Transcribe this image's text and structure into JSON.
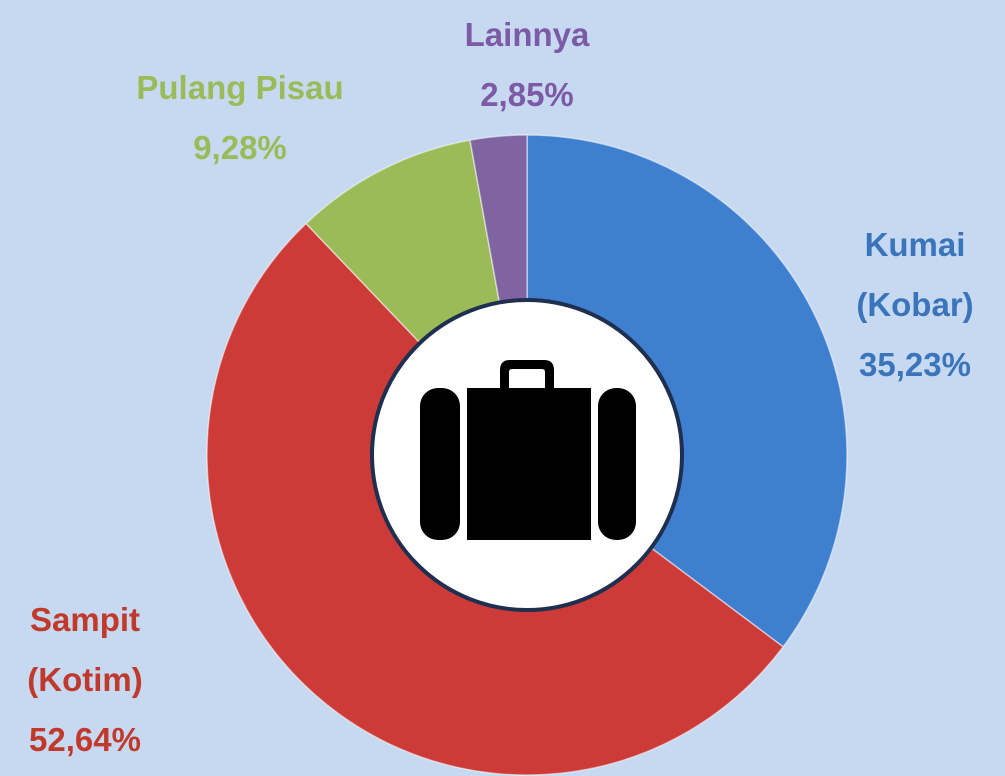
{
  "chart_data": {
    "type": "pie",
    "categories": [
      "Kumai (Kobar)",
      "Sampit (Kotim)",
      "Pulang Pisau",
      "Lainnya"
    ],
    "values": [
      35.23,
      52.64,
      9.28,
      2.85
    ],
    "value_labels": [
      "35,23%",
      "52,64%",
      "9,28%",
      "2,85%"
    ],
    "colors": [
      "#3f7fd0",
      "#cc3b38",
      "#9bbb59",
      "#8064a2"
    ]
  }
}
